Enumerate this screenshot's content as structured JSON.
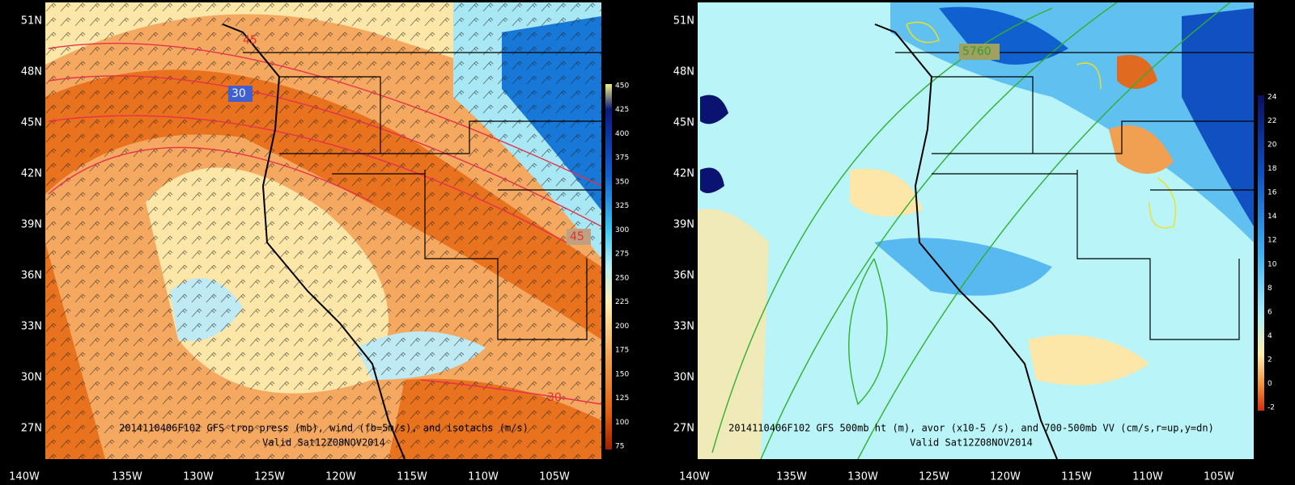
{
  "lat_labels": [
    "51N",
    "48N",
    "45N",
    "42N",
    "39N",
    "36N",
    "33N",
    "30N",
    "27N"
  ],
  "lon_labels": [
    "140W",
    "135W",
    "130W",
    "125W",
    "120W",
    "115W",
    "110W",
    "105W"
  ],
  "left_panel": {
    "caption": "2014110406F102 GFS trop press (mb), wind (fb=5m/s), and isotachs (m/s)",
    "valid": "Valid Sat12Z08NOV2014",
    "colorbar": [
      "450",
      "425",
      "400",
      "375",
      "350",
      "325",
      "300",
      "275",
      "250",
      "225",
      "200",
      "175",
      "150",
      "125",
      "100",
      "75"
    ],
    "contour_labels": [
      "45",
      "30",
      "45",
      "30"
    ]
  },
  "right_panel": {
    "caption": "2014110406F102 GFS 500mb ht (m), avor (x10-5 /s), and 700-500mb VV (cm/s,r=up,y=dn)",
    "valid": "Valid Sat12Z08NOV2014",
    "colorbar": [
      "24",
      "22",
      "20",
      "18",
      "16",
      "14",
      "12",
      "10",
      "8",
      "6",
      "4",
      "2",
      "0",
      "-2"
    ],
    "contour_labels": [
      "5760"
    ]
  }
}
